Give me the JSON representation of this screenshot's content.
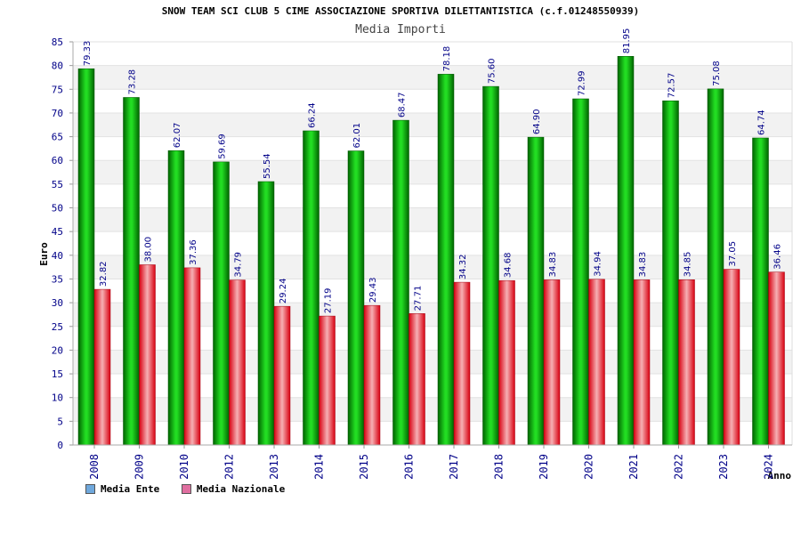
{
  "title": "SNOW TEAM SCI CLUB 5 CIME ASSOCIAZIONE SPORTIVA DILETTANTISTICA (c.f.01248550939)",
  "subtitle": "Media Importi",
  "legend": {
    "ente_label": "Media Ente",
    "nazionale_label": "Media Nazionale",
    "ente_color": "#6fa8dc",
    "nazionale_color": "#e06fa0"
  },
  "chart_data": {
    "type": "bar",
    "title": "Media Importi",
    "xlabel": "Anno",
    "ylabel": "Euro",
    "ylim": [
      0,
      85
    ],
    "ytick_step": 5,
    "categories": [
      "2008",
      "2009",
      "2010",
      "2012",
      "2013",
      "2014",
      "2015",
      "2016",
      "2017",
      "2018",
      "2019",
      "2020",
      "2021",
      "2022",
      "2023",
      "2024"
    ],
    "series": [
      {
        "name": "Media Ente",
        "color": "#00b000",
        "values": [
          79.33,
          73.28,
          62.07,
          59.69,
          55.54,
          66.24,
          62.01,
          68.47,
          78.18,
          75.6,
          64.9,
          72.99,
          81.95,
          72.57,
          75.08,
          64.74
        ],
        "labels": [
          "79.33",
          "73.28",
          "62.07",
          "59.69",
          "55.54",
          "66.24",
          "62.01",
          "68.47",
          "78.18",
          "75.60",
          "64.90",
          "72.99",
          "81.95",
          "72.57",
          "75.08",
          "64.74"
        ]
      },
      {
        "name": "Media Nazionale",
        "color": "#e8101e",
        "values": [
          32.82,
          38.0,
          37.36,
          34.79,
          29.24,
          27.19,
          29.43,
          27.71,
          34.32,
          34.68,
          34.83,
          34.94,
          34.83,
          34.85,
          37.05,
          36.46
        ],
        "labels": [
          "32.82",
          "38.00",
          "37.36",
          "34.79",
          "29.24",
          "27.19",
          "29.43",
          "27.71",
          "34.32",
          "34.68",
          "34.83",
          "34.94",
          "34.83",
          "34.85",
          "37.05",
          "36.46"
        ]
      }
    ]
  }
}
